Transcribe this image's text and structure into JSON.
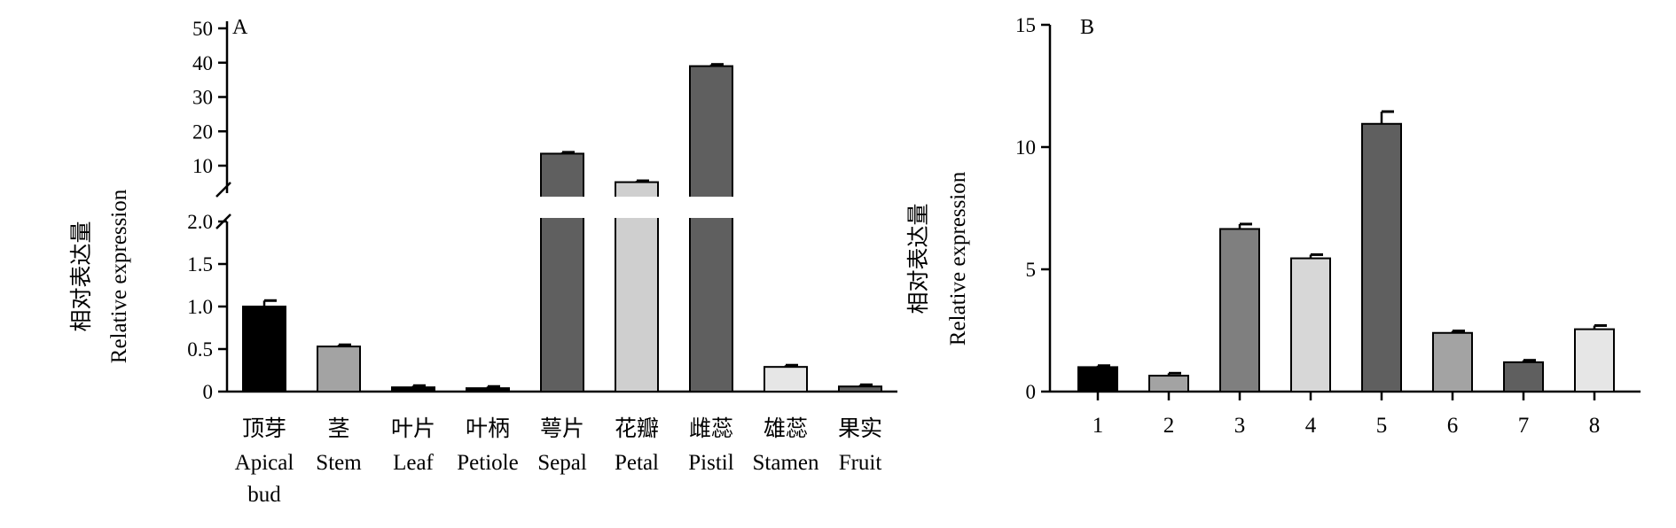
{
  "chart_data": [
    {
      "type": "bar",
      "panel_label": "A",
      "ylabel_cn": "相对表达量",
      "ylabel_en": "Relative expression",
      "broken_axis": true,
      "lower_segment": {
        "ylim": [
          0,
          2.0
        ],
        "ticks": [
          "0",
          "0.5",
          "1.0",
          "1.5",
          "2.0"
        ]
      },
      "upper_segment": {
        "ylim": [
          2.0,
          50
        ],
        "ticks": [
          "10",
          "20",
          "30",
          "40",
          "50"
        ]
      },
      "categories_cn": [
        "顶芽",
        "茎",
        "叶片",
        "叶柄",
        "萼片",
        "花瓣",
        "雌蕊",
        "雄蕊",
        "果实"
      ],
      "categories_en": [
        [
          "Apical",
          "bud"
        ],
        [
          "Stem"
        ],
        [
          "Leaf"
        ],
        [
          "Petiole"
        ],
        [
          "Sepal"
        ],
        [
          "Petal"
        ],
        [
          "Pistil"
        ],
        [
          "Stamen"
        ],
        [
          "Fruit"
        ]
      ],
      "values": [
        1.0,
        0.53,
        0.05,
        0.04,
        13.5,
        5.2,
        39.0,
        0.29,
        0.06
      ],
      "errors": [
        0.07,
        0.02,
        0.02,
        0.02,
        0.4,
        0.4,
        0.5,
        0.02,
        0.02
      ],
      "colors": [
        "#000000",
        "#a3a3a3",
        "#000000",
        "#000000",
        "#5f5f5f",
        "#cfcfcf",
        "#5f5f5f",
        "#e6e6e6",
        "#5f5f5f"
      ]
    },
    {
      "type": "bar",
      "panel_label": "B",
      "ylabel_cn": "相对表达量",
      "ylabel_en": "Relative expression",
      "ylim": [
        0,
        15
      ],
      "ticks": [
        "0",
        "5",
        "10",
        "15"
      ],
      "categories": [
        "1",
        "2",
        "3",
        "4",
        "5",
        "6",
        "7",
        "8"
      ],
      "values": [
        1.0,
        0.65,
        6.65,
        5.45,
        10.95,
        2.4,
        1.2,
        2.55
      ],
      "errors": [
        0.06,
        0.1,
        0.2,
        0.15,
        0.5,
        0.08,
        0.08,
        0.15
      ],
      "colors": [
        "#000000",
        "#a3a3a3",
        "#7f7f7f",
        "#d7d7d7",
        "#5f5f5f",
        "#a3a3a3",
        "#5f5f5f",
        "#e6e6e6"
      ]
    }
  ]
}
